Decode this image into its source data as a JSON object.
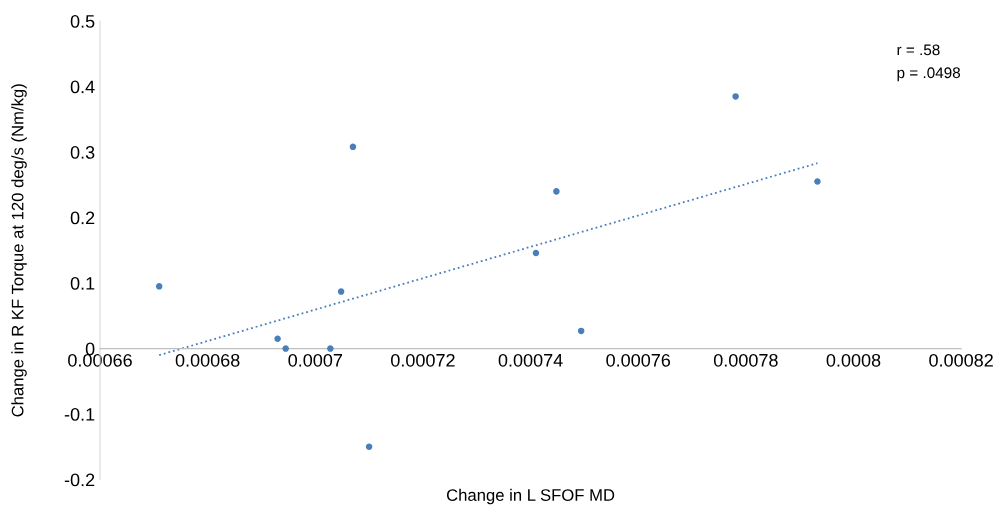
{
  "chart_data": {
    "type": "scatter",
    "xlabel": "Change in L SFOF MD",
    "ylabel": "Change in R KF Torque at 120 deg/s (Nm/kg)",
    "annotations": [
      "r = .58",
      "p = .0498"
    ],
    "series": [
      {
        "type": "scatter",
        "color": "#4a7ebb",
        "marker": "circle",
        "x": [
          0.000671,
          0.000693,
          0.0006945,
          0.0007028,
          0.0007048,
          0.000707,
          0.00071,
          0.000741,
          0.0007448,
          0.0007494,
          0.0007781,
          0.0007933
        ],
        "values": [
          0.095,
          0.015,
          0,
          0,
          0.087,
          0.308,
          -0.15,
          0.146,
          0.24,
          0.027,
          0.385,
          0.255
        ]
      },
      {
        "type": "line",
        "color": "#4a7ebb",
        "line_style": "dotted",
        "x": [
          0.000671,
          0.0007933
        ],
        "values": [
          -0.01,
          0.283
        ]
      }
    ],
    "xlim": [
      0.00066,
      0.00082
    ],
    "xticks": [
      0.00066,
      0.00068,
      0.0007,
      0.00072,
      0.00074,
      0.00076,
      0.00078,
      0.0008,
      0.00082
    ],
    "ylim": [
      -0.2,
      0.5
    ],
    "yticks": [
      -0.2,
      -0.1,
      0,
      0.1,
      0.2,
      0.3,
      0.4,
      0.5
    ],
    "grid": false,
    "legend": false
  }
}
